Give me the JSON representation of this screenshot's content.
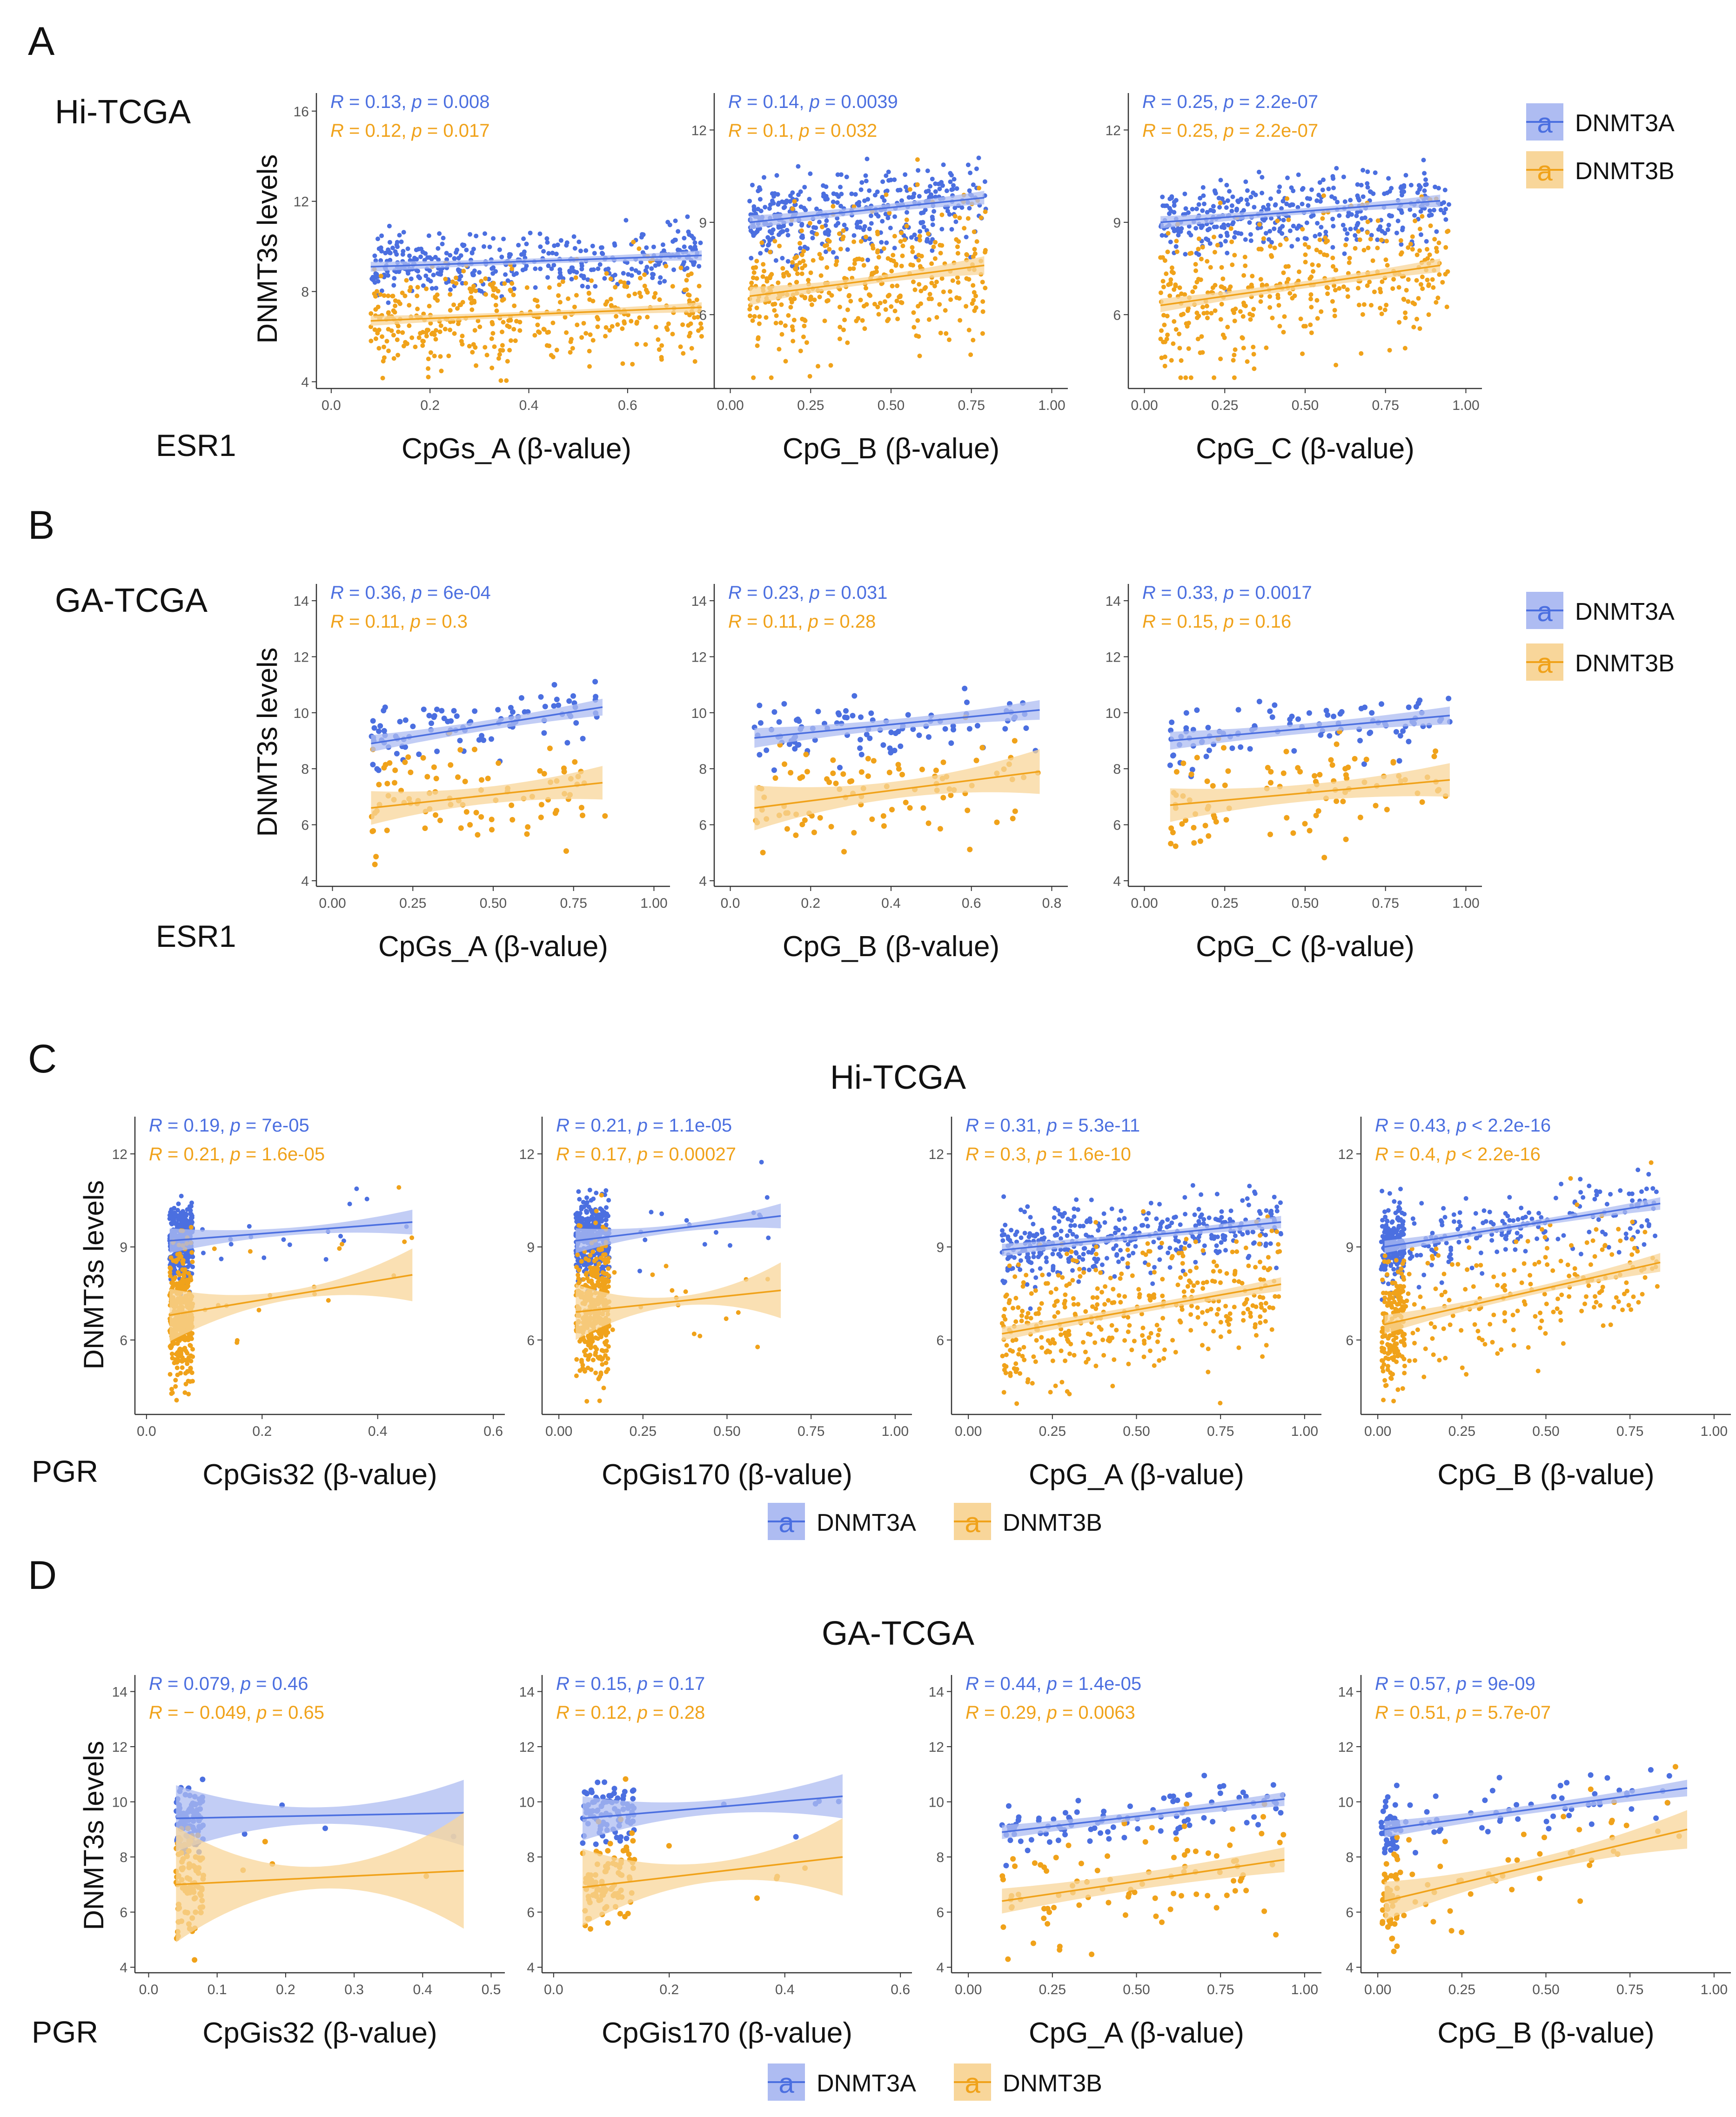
{
  "figure": {
    "panels": [
      {
        "letter": "A",
        "cohort": "Hi-TCGA",
        "gene": "ESR1"
      },
      {
        "letter": "B",
        "cohort": "GA-TCGA",
        "gene": "ESR1"
      },
      {
        "letter": "C",
        "cohort": "Hi-TCGA",
        "gene": "PGR"
      },
      {
        "letter": "D",
        "cohort": "GA-TCGA",
        "gene": "PGR"
      }
    ],
    "ylabel": "DNMT3s levels",
    "legend": {
      "glyph": "a",
      "series": [
        "DNMT3A",
        "DNMT3B"
      ]
    },
    "colors": {
      "DNMT3A": "#4b6fe0",
      "DNMT3B": "#f0a21a",
      "band_A": "#aebcf2",
      "band_B": "#f8d69a",
      "axis": "#333333",
      "tick": "#555555"
    }
  },
  "chart_data": [
    {
      "id": "A1",
      "type": "scatter",
      "panel": "A",
      "xlabel": "CpGs_A (β-value)",
      "xlim": [
        -0.03,
        0.78
      ],
      "xticks": [
        0.0,
        0.2,
        0.4,
        0.6
      ],
      "xtick_labels": [
        "0.0",
        "0.2",
        "0.4",
        "0.6"
      ],
      "ylim": [
        3.7,
        16.8
      ],
      "yticks": [
        4,
        8,
        12,
        16
      ],
      "n_points": 380,
      "x_range": [
        0.08,
        0.75
      ],
      "series": [
        {
          "name": "DNMT3A",
          "R": "0.13",
          "p": "0.008",
          "fit": [
            [
              0.08,
              9.1
            ],
            [
              0.75,
              9.6
            ]
          ],
          "band": [
            0.12,
            0.22
          ],
          "sd": 0.65
        },
        {
          "name": "DNMT3B",
          "R": "0.12",
          "p": "0.017",
          "fit": [
            [
              0.08,
              6.7
            ],
            [
              0.75,
              7.3
            ]
          ],
          "band": [
            0.12,
            0.22
          ],
          "sd": 1.1
        }
      ]
    },
    {
      "id": "A2",
      "type": "scatter",
      "panel": "A",
      "xlabel": "CpG_B (β-value)",
      "xlim": [
        -0.05,
        1.05
      ],
      "xticks": [
        0.0,
        0.25,
        0.5,
        0.75,
        1.0
      ],
      "xtick_labels": [
        "0.00",
        "0.25",
        "0.50",
        "0.75",
        "1.00"
      ],
      "ylim": [
        3.6,
        13.2
      ],
      "yticks": [
        6,
        9,
        12
      ],
      "n_points": 380,
      "x_range": [
        0.06,
        0.8
      ],
      "series": [
        {
          "name": "DNMT3A",
          "R": "0.14",
          "p": "0.0039",
          "fit": [
            [
              0.06,
              9.0
            ],
            [
              0.79,
              9.8
            ]
          ],
          "band": [
            0.12,
            0.22
          ],
          "sd": 0.65
        },
        {
          "name": "DNMT3B",
          "R": "0.1",
          "p": "0.032",
          "fit": [
            [
              0.06,
              6.6
            ],
            [
              0.79,
              7.6
            ]
          ],
          "band": [
            0.12,
            0.3
          ],
          "sd": 1.15
        }
      ]
    },
    {
      "id": "A3",
      "type": "scatter",
      "panel": "A",
      "xlabel": "CpG_C (β-value)",
      "xlim": [
        -0.05,
        1.05
      ],
      "xticks": [
        0.0,
        0.25,
        0.5,
        0.75,
        1.0
      ],
      "xtick_labels": [
        "0.00",
        "0.25",
        "0.50",
        "0.75",
        "1.00"
      ],
      "ylim": [
        3.6,
        13.2
      ],
      "yticks": [
        6,
        9,
        12
      ],
      "n_points": 380,
      "x_range": [
        0.05,
        0.95
      ],
      "series": [
        {
          "name": "DNMT3A",
          "R": "0.25",
          "p": "2.2e-07",
          "fit": [
            [
              0.05,
              9.0
            ],
            [
              0.92,
              9.7
            ]
          ],
          "band": [
            0.1,
            0.2
          ],
          "sd": 0.6
        },
        {
          "name": "DNMT3B",
          "R": "0.25",
          "p": "2.2e-07",
          "fit": [
            [
              0.05,
              6.3
            ],
            [
              0.92,
              7.6
            ]
          ],
          "band": [
            0.12,
            0.22
          ],
          "sd": 1.1
        }
      ]
    },
    {
      "id": "B1",
      "type": "scatter",
      "panel": "B",
      "xlabel": "CpGs_A (β-value)",
      "xlim": [
        -0.05,
        1.05
      ],
      "xticks": [
        0.0,
        0.25,
        0.5,
        0.75,
        1.0
      ],
      "xtick_labels": [
        "0.00",
        "0.25",
        "0.50",
        "0.75",
        "1.00"
      ],
      "ylim": [
        3.8,
        14.6
      ],
      "yticks": [
        4,
        6,
        8,
        10,
        12,
        14
      ],
      "n_points": 95,
      "x_range": [
        0.12,
        0.85
      ],
      "series": [
        {
          "name": "DNMT3A",
          "R": "0.36",
          "p": "6e-04",
          "fit": [
            [
              0.12,
              8.9
            ],
            [
              0.84,
              10.2
            ]
          ],
          "band": [
            0.18,
            0.3
          ],
          "sd": 0.55
        },
        {
          "name": "DNMT3B",
          "R": "0.11",
          "p": "0.3",
          "fit": [
            [
              0.12,
              6.6
            ],
            [
              0.84,
              7.5
            ]
          ],
          "band": [
            0.3,
            0.6
          ],
          "sd": 1.0
        }
      ]
    },
    {
      "id": "B2",
      "type": "scatter",
      "panel": "B",
      "xlabel": "CpG_B (β-value)",
      "xlim": [
        -0.04,
        0.84
      ],
      "xticks": [
        0.0,
        0.2,
        0.4,
        0.6,
        0.8
      ],
      "xtick_labels": [
        "0.0",
        "0.2",
        "0.4",
        "0.6",
        "0.8"
      ],
      "ylim": [
        3.8,
        14.6
      ],
      "yticks": [
        4,
        6,
        8,
        10,
        12,
        14
      ],
      "n_points": 95,
      "x_range": [
        0.06,
        0.77
      ],
      "series": [
        {
          "name": "DNMT3A",
          "R": "0.23",
          "p": "0.031",
          "fit": [
            [
              0.06,
              9.1
            ],
            [
              0.77,
              10.1
            ]
          ],
          "band": [
            0.18,
            0.35
          ],
          "sd": 0.55
        },
        {
          "name": "DNMT3B",
          "R": "0.11",
          "p": "0.28",
          "fit": [
            [
              0.06,
              6.6
            ],
            [
              0.77,
              7.9
            ]
          ],
          "band": [
            0.3,
            0.8
          ],
          "sd": 1.0
        }
      ]
    },
    {
      "id": "B3",
      "type": "scatter",
      "panel": "B",
      "xlabel": "CpG_C (β-value)",
      "xlim": [
        -0.05,
        1.05
      ],
      "xticks": [
        0.0,
        0.25,
        0.5,
        0.75,
        1.0
      ],
      "xtick_labels": [
        "0.00",
        "0.25",
        "0.50",
        "0.75",
        "1.00"
      ],
      "ylim": [
        3.8,
        14.6
      ],
      "yticks": [
        4,
        6,
        8,
        10,
        12,
        14
      ],
      "n_points": 95,
      "x_range": [
        0.08,
        0.95
      ],
      "series": [
        {
          "name": "DNMT3A",
          "R": "0.33",
          "p": "0.0017",
          "fit": [
            [
              0.08,
              9.0
            ],
            [
              0.95,
              9.9
            ]
          ],
          "band": [
            0.18,
            0.32
          ],
          "sd": 0.55
        },
        {
          "name": "DNMT3B",
          "R": "0.15",
          "p": "0.16",
          "fit": [
            [
              0.08,
              6.7
            ],
            [
              0.95,
              7.6
            ]
          ],
          "band": [
            0.3,
            0.6
          ],
          "sd": 1.0
        }
      ]
    },
    {
      "id": "C1",
      "type": "scatter",
      "panel": "C",
      "xlabel": "CpGis32 (β-value)",
      "xlim": [
        -0.02,
        0.62
      ],
      "xticks": [
        0.0,
        0.2,
        0.4,
        0.6
      ],
      "xtick_labels": [
        "0.0",
        "0.2",
        "0.4",
        "0.6"
      ],
      "ylim": [
        3.6,
        13.2
      ],
      "yticks": [
        6,
        9,
        12
      ],
      "n_points": 380,
      "x_range": [
        0.04,
        0.08
      ],
      "outliers": 18,
      "outlier_max": 0.46,
      "series": [
        {
          "name": "DNMT3A",
          "R": "0.19",
          "p": "7e-05",
          "fit": [
            [
              0.04,
              9.2
            ],
            [
              0.46,
              9.8
            ]
          ],
          "band": [
            0.12,
            0.4
          ],
          "sd": 0.6
        },
        {
          "name": "DNMT3B",
          "R": "0.21",
          "p": "1.6e-05",
          "fit": [
            [
              0.04,
              6.8
            ],
            [
              0.46,
              8.1
            ]
          ],
          "band": [
            0.15,
            0.85
          ],
          "sd": 1.05
        }
      ]
    },
    {
      "id": "C2",
      "type": "scatter",
      "panel": "C",
      "xlabel": "CpGis170 (β-value)",
      "xlim": [
        -0.05,
        1.05
      ],
      "xticks": [
        0.0,
        0.25,
        0.5,
        0.75,
        1.0
      ],
      "xtick_labels": [
        "0.00",
        "0.25",
        "0.50",
        "0.75",
        "1.00"
      ],
      "ylim": [
        3.6,
        13.2
      ],
      "yticks": [
        6,
        9,
        12
      ],
      "n_points": 380,
      "x_range": [
        0.05,
        0.15
      ],
      "outliers": 16,
      "outlier_max": 0.66,
      "series": [
        {
          "name": "DNMT3A",
          "R": "0.21",
          "p": "1.1e-05",
          "fit": [
            [
              0.05,
              9.2
            ],
            [
              0.66,
              10.0
            ]
          ],
          "band": [
            0.12,
            0.4
          ],
          "sd": 0.6
        },
        {
          "name": "DNMT3B",
          "R": "0.17",
          "p": "0.00027",
          "fit": [
            [
              0.05,
              6.9
            ],
            [
              0.66,
              7.6
            ]
          ],
          "band": [
            0.15,
            0.9
          ],
          "sd": 1.05
        }
      ]
    },
    {
      "id": "C3",
      "type": "scatter",
      "panel": "C",
      "xlabel": "CpG_A (β-value)",
      "xlim": [
        -0.05,
        1.05
      ],
      "xticks": [
        0.0,
        0.25,
        0.5,
        0.75,
        1.0
      ],
      "xtick_labels": [
        "0.00",
        "0.25",
        "0.50",
        "0.75",
        "1.00"
      ],
      "ylim": [
        3.6,
        13.2
      ],
      "yticks": [
        6,
        9,
        12
      ],
      "n_points": 380,
      "x_range": [
        0.1,
        0.93
      ],
      "series": [
        {
          "name": "DNMT3A",
          "R": "0.31",
          "p": "5.3e-11",
          "fit": [
            [
              0.1,
              8.9
            ],
            [
              0.93,
              9.8
            ]
          ],
          "band": [
            0.1,
            0.2
          ],
          "sd": 0.6
        },
        {
          "name": "DNMT3B",
          "R": "0.3",
          "p": "1.6e-10",
          "fit": [
            [
              0.1,
              6.2
            ],
            [
              0.93,
              7.8
            ]
          ],
          "band": [
            0.12,
            0.22
          ],
          "sd": 1.1
        }
      ]
    },
    {
      "id": "C4",
      "type": "scatter",
      "panel": "C",
      "xlabel": "CpG_B (β-value)",
      "xlim": [
        -0.05,
        1.05
      ],
      "xticks": [
        0.0,
        0.25,
        0.5,
        0.75,
        1.0
      ],
      "xtick_labels": [
        "0.00",
        "0.25",
        "0.50",
        "0.75",
        "1.00"
      ],
      "ylim": [
        3.6,
        13.2
      ],
      "yticks": [
        6,
        9,
        12
      ],
      "n_points": 380,
      "x_range": [
        0.02,
        0.84
      ],
      "cluster": [
        0.01,
        0.08
      ],
      "series": [
        {
          "name": "DNMT3A",
          "R": "0.43",
          "p": "< 2.2e-16",
          "fit": [
            [
              0.02,
              9.0
            ],
            [
              0.84,
              10.4
            ]
          ],
          "band": [
            0.1,
            0.2
          ],
          "sd": 0.6
        },
        {
          "name": "DNMT3B",
          "R": "0.4",
          "p": "< 2.2e-16",
          "fit": [
            [
              0.02,
              6.5
            ],
            [
              0.84,
              8.5
            ]
          ],
          "band": [
            0.12,
            0.3
          ],
          "sd": 1.05
        }
      ]
    },
    {
      "id": "D1",
      "type": "scatter",
      "panel": "D",
      "xlabel": "CpGis32 (β-value)",
      "xlim": [
        -0.02,
        0.52
      ],
      "xticks": [
        0.0,
        0.1,
        0.2,
        0.3,
        0.4,
        0.5
      ],
      "xtick_labels": [
        "0.0",
        "0.1",
        "0.2",
        "0.3",
        "0.4",
        "0.5"
      ],
      "ylim": [
        3.8,
        14.6
      ],
      "yticks": [
        4,
        6,
        8,
        10,
        12,
        14
      ],
      "n_points": 95,
      "x_range": [
        0.04,
        0.08
      ],
      "outliers": 4,
      "outlier_max": 0.46,
      "series": [
        {
          "name": "DNMT3A",
          "R": "0.079",
          "p": "0.46",
          "fit": [
            [
              0.04,
              9.4
            ],
            [
              0.46,
              9.6
            ]
          ],
          "band": [
            0.3,
            1.2
          ],
          "sd": 0.6
        },
        {
          "name": "DNMT3B",
          "R": "− 0.049",
          "p": "0.65",
          "fit": [
            [
              0.04,
              7.0
            ],
            [
              0.46,
              7.5
            ]
          ],
          "band": [
            0.4,
            2.1
          ],
          "sd": 1.0
        }
      ]
    },
    {
      "id": "D2",
      "type": "scatter",
      "panel": "D",
      "xlabel": "CpGis170 (β-value)",
      "xlim": [
        -0.02,
        0.62
      ],
      "xticks": [
        0.0,
        0.2,
        0.4,
        0.6
      ],
      "xtick_labels": [
        "0.0",
        "0.2",
        "0.4",
        "0.6"
      ],
      "ylim": [
        3.8,
        14.6
      ],
      "yticks": [
        4,
        6,
        8,
        10,
        12,
        14
      ],
      "n_points": 95,
      "x_range": [
        0.05,
        0.14
      ],
      "outliers": 5,
      "outlier_max": 0.5,
      "series": [
        {
          "name": "DNMT3A",
          "R": "0.15",
          "p": "0.17",
          "fit": [
            [
              0.05,
              9.4
            ],
            [
              0.5,
              10.2
            ]
          ],
          "band": [
            0.25,
            0.8
          ],
          "sd": 0.6
        },
        {
          "name": "DNMT3B",
          "R": "0.12",
          "p": "0.28",
          "fit": [
            [
              0.05,
              6.9
            ],
            [
              0.5,
              8.0
            ]
          ],
          "band": [
            0.35,
            1.4
          ],
          "sd": 1.0
        }
      ]
    },
    {
      "id": "D3",
      "type": "scatter",
      "panel": "D",
      "xlabel": "CpG_A (β-value)",
      "xlim": [
        -0.05,
        1.05
      ],
      "xticks": [
        0.0,
        0.25,
        0.5,
        0.75,
        1.0
      ],
      "xtick_labels": [
        "0.00",
        "0.25",
        "0.50",
        "0.75",
        "1.00"
      ],
      "ylim": [
        3.8,
        14.6
      ],
      "yticks": [
        4,
        6,
        8,
        10,
        12,
        14
      ],
      "n_points": 95,
      "x_range": [
        0.1,
        0.94
      ],
      "series": [
        {
          "name": "DNMT3A",
          "R": "0.44",
          "p": "1.4e-05",
          "fit": [
            [
              0.1,
              8.9
            ],
            [
              0.94,
              10.1
            ]
          ],
          "band": [
            0.15,
            0.25
          ],
          "sd": 0.55
        },
        {
          "name": "DNMT3B",
          "R": "0.29",
          "p": "0.0063",
          "fit": [
            [
              0.1,
              6.4
            ],
            [
              0.94,
              7.9
            ]
          ],
          "band": [
            0.3,
            0.45
          ],
          "sd": 1.0
        }
      ]
    },
    {
      "id": "D4",
      "type": "scatter",
      "panel": "D",
      "xlabel": "CpG_B (β-value)",
      "xlim": [
        -0.05,
        1.05
      ],
      "xticks": [
        0.0,
        0.25,
        0.5,
        0.75,
        1.0
      ],
      "xtick_labels": [
        "0.00",
        "0.25",
        "0.50",
        "0.75",
        "1.00"
      ],
      "ylim": [
        3.8,
        14.6
      ],
      "yticks": [
        4,
        6,
        8,
        10,
        12,
        14
      ],
      "n_points": 95,
      "x_range": [
        0.02,
        0.92
      ],
      "cluster": [
        0.01,
        0.06
      ],
      "series": [
        {
          "name": "DNMT3A",
          "R": "0.57",
          "p": "9e-09",
          "fit": [
            [
              0.02,
              9.0
            ],
            [
              0.92,
              10.5
            ]
          ],
          "band": [
            0.15,
            0.3
          ],
          "sd": 0.55
        },
        {
          "name": "DNMT3B",
          "R": "0.51",
          "p": "5.7e-07",
          "fit": [
            [
              0.02,
              6.4
            ],
            [
              0.92,
              9.0
            ]
          ],
          "band": [
            0.25,
            0.7
          ],
          "sd": 1.0
        }
      ]
    }
  ]
}
